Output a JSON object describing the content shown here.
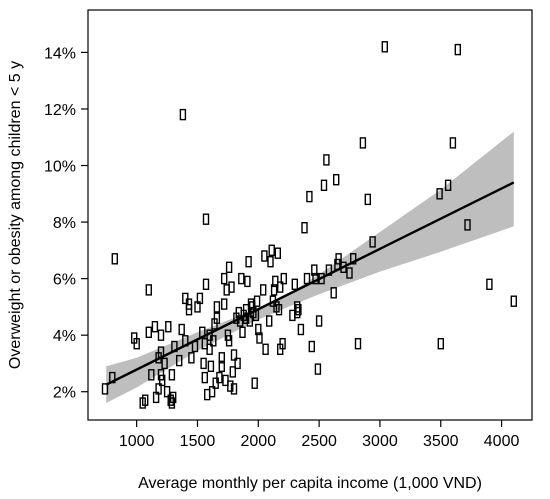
{
  "chart_data": {
    "type": "scatter",
    "title": "",
    "xlabel": "Average monthly per capita income (1,000 VND)",
    "ylabel": "Overweight or obesity among children < 5 y",
    "xlim": [
      600,
      4250
    ],
    "ylim": [
      1.0,
      15.5
    ],
    "x_ticks": [
      1000,
      1500,
      2000,
      2500,
      3000,
      3500,
      4000
    ],
    "y_ticks": [
      2,
      4,
      6,
      8,
      10,
      12,
      14
    ],
    "y_tick_suffix": "%",
    "grid": false,
    "marker": "open-rectangle",
    "colors": {
      "points": "#000000",
      "fit_line": "#000000",
      "band": "#bebebe"
    },
    "fit_line": {
      "x": [
        750,
        4100
      ],
      "y": [
        2.25,
        9.4
      ]
    },
    "confidence_band": {
      "x": [
        750,
        1000,
        1500,
        2000,
        2300,
        2500,
        3000,
        3500,
        4100
      ],
      "lower": [
        1.6,
        2.15,
        3.45,
        4.55,
        5.1,
        5.45,
        6.25,
        6.95,
        7.85
      ],
      "upper": [
        2.9,
        3.2,
        4.1,
        4.95,
        5.6,
        6.15,
        7.65,
        9.15,
        11.2
      ]
    },
    "points": [
      [
        740,
        2.1
      ],
      [
        800,
        2.5
      ],
      [
        820,
        6.7
      ],
      [
        980,
        3.9
      ],
      [
        1000,
        3.7
      ],
      [
        1050,
        1.6
      ],
      [
        1070,
        1.7
      ],
      [
        1100,
        5.6
      ],
      [
        1100,
        4.1
      ],
      [
        1120,
        2.6
      ],
      [
        1150,
        4.3
      ],
      [
        1160,
        1.8
      ],
      [
        1180,
        3.2
      ],
      [
        1180,
        2.1
      ],
      [
        1200,
        4.0
      ],
      [
        1200,
        3.4
      ],
      [
        1200,
        2.6
      ],
      [
        1210,
        2.4
      ],
      [
        1230,
        3.0
      ],
      [
        1250,
        2.0
      ],
      [
        1260,
        4.3
      ],
      [
        1280,
        1.7
      ],
      [
        1290,
        2.6
      ],
      [
        1290,
        1.6
      ],
      [
        1300,
        1.8
      ],
      [
        1310,
        3.6
      ],
      [
        1350,
        3.1
      ],
      [
        1370,
        4.2
      ],
      [
        1380,
        11.8
      ],
      [
        1400,
        3.8
      ],
      [
        1400,
        5.3
      ],
      [
        1430,
        4.9
      ],
      [
        1430,
        5.1
      ],
      [
        1450,
        3.2
      ],
      [
        1480,
        3.6
      ],
      [
        1500,
        5.0
      ],
      [
        1520,
        5.3
      ],
      [
        1540,
        4.1
      ],
      [
        1550,
        3.0
      ],
      [
        1560,
        2.5
      ],
      [
        1560,
        3.7
      ],
      [
        1570,
        8.1
      ],
      [
        1570,
        5.8
      ],
      [
        1580,
        1.9
      ],
      [
        1600,
        4.0
      ],
      [
        1600,
        3.5
      ],
      [
        1610,
        2.9
      ],
      [
        1620,
        2.0
      ],
      [
        1630,
        3.8
      ],
      [
        1640,
        4.4
      ],
      [
        1650,
        2.3
      ],
      [
        1660,
        4.6
      ],
      [
        1660,
        5.0
      ],
      [
        1680,
        2.5
      ],
      [
        1700,
        3.2
      ],
      [
        1700,
        2.9
      ],
      [
        1720,
        5.1
      ],
      [
        1720,
        6.0
      ],
      [
        1730,
        2.4
      ],
      [
        1740,
        5.6
      ],
      [
        1750,
        4.0
      ],
      [
        1760,
        6.4
      ],
      [
        1760,
        3.8
      ],
      [
        1770,
        2.2
      ],
      [
        1780,
        5.7
      ],
      [
        1790,
        2.7
      ],
      [
        1800,
        2.1
      ],
      [
        1800,
        3.3
      ],
      [
        1820,
        4.6
      ],
      [
        1830,
        3.0
      ],
      [
        1840,
        4.8
      ],
      [
        1850,
        4.5
      ],
      [
        1860,
        6.0
      ],
      [
        1870,
        4.1
      ],
      [
        1880,
        4.7
      ],
      [
        1900,
        4.9
      ],
      [
        1900,
        4.6
      ],
      [
        1910,
        5.9
      ],
      [
        1920,
        6.6
      ],
      [
        1930,
        4.5
      ],
      [
        1940,
        5.1
      ],
      [
        1950,
        5.0
      ],
      [
        1960,
        4.8
      ],
      [
        1970,
        2.3
      ],
      [
        1980,
        4.7
      ],
      [
        1990,
        5.2
      ],
      [
        2000,
        4.2
      ],
      [
        2010,
        3.9
      ],
      [
        2040,
        5.6
      ],
      [
        2050,
        6.8
      ],
      [
        2060,
        3.5
      ],
      [
        2090,
        4.5
      ],
      [
        2100,
        6.6
      ],
      [
        2110,
        7.0
      ],
      [
        2120,
        5.2
      ],
      [
        2130,
        5.6
      ],
      [
        2140,
        5.9
      ],
      [
        2150,
        5.0
      ],
      [
        2160,
        6.9
      ],
      [
        2170,
        4.9
      ],
      [
        2180,
        3.5
      ],
      [
        2180,
        5.7
      ],
      [
        2200,
        3.7
      ],
      [
        2210,
        6.0
      ],
      [
        2280,
        4.7
      ],
      [
        2300,
        5.8
      ],
      [
        2320,
        4.8
      ],
      [
        2320,
        5.0
      ],
      [
        2330,
        4.9
      ],
      [
        2350,
        4.2
      ],
      [
        2380,
        7.8
      ],
      [
        2400,
        6.0
      ],
      [
        2420,
        8.9
      ],
      [
        2440,
        3.6
      ],
      [
        2460,
        6.3
      ],
      [
        2470,
        6.0
      ],
      [
        2490,
        2.8
      ],
      [
        2500,
        4.5
      ],
      [
        2520,
        6.0
      ],
      [
        2540,
        9.3
      ],
      [
        2560,
        10.2
      ],
      [
        2580,
        6.3
      ],
      [
        2620,
        5.5
      ],
      [
        2640,
        9.5
      ],
      [
        2650,
        6.5
      ],
      [
        2660,
        6.7
      ],
      [
        2700,
        6.4
      ],
      [
        2750,
        6.2
      ],
      [
        2780,
        6.7
      ],
      [
        2820,
        3.7
      ],
      [
        2860,
        10.8
      ],
      [
        2900,
        8.8
      ],
      [
        2940,
        7.3
      ],
      [
        3040,
        14.2
      ],
      [
        3490,
        9.0
      ],
      [
        3500,
        3.7
      ],
      [
        3560,
        9.3
      ],
      [
        3600,
        10.8
      ],
      [
        3640,
        14.1
      ],
      [
        3720,
        7.9
      ],
      [
        3900,
        5.8
      ],
      [
        4100,
        5.2
      ]
    ]
  }
}
